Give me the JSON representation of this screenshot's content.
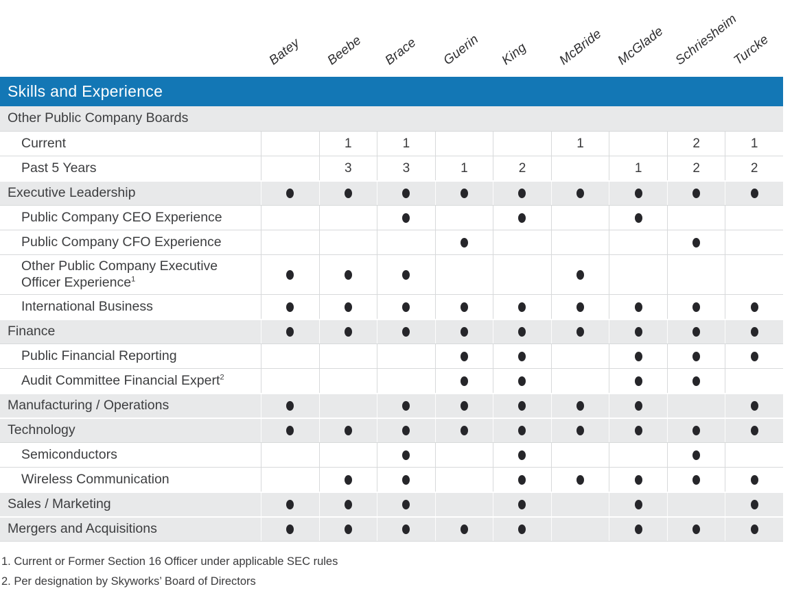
{
  "page": {
    "header_title": "Skills and Experience",
    "columns": [
      "Batey",
      "Beebe",
      "Brace",
      "Guerin",
      "King",
      "McBride",
      "McGlade",
      "Schriesheim",
      "Turcke"
    ],
    "rows": [
      {
        "label": "Other Public Company Boards",
        "type": "section",
        "plain": true,
        "cells": [
          "",
          "",
          "",
          "",
          "",
          "",
          "",
          "",
          ""
        ]
      },
      {
        "label": "Current",
        "type": "sub",
        "cells": [
          "",
          "1",
          "1",
          "",
          "",
          "1",
          "",
          "2",
          "1"
        ]
      },
      {
        "label": "Past 5 Years",
        "type": "sub",
        "cells": [
          "",
          "3",
          "3",
          "1",
          "2",
          "",
          "1",
          "2",
          "2"
        ]
      },
      {
        "label": "Executive Leadership",
        "type": "section",
        "cells": [
          "dot",
          "dot",
          "dot",
          "dot",
          "dot",
          "dot",
          "dot",
          "dot",
          "dot"
        ]
      },
      {
        "label": "Public Company CEO Experience",
        "type": "sub",
        "cells": [
          "",
          "",
          "dot",
          "",
          "dot",
          "",
          "dot",
          "",
          ""
        ]
      },
      {
        "label": "Public Company CFO Experience",
        "type": "sub",
        "cells": [
          "",
          "",
          "",
          "dot",
          "",
          "",
          "",
          "dot",
          ""
        ]
      },
      {
        "label": "Other Public Company Executive Officer Experience",
        "sup": "1",
        "type": "sub",
        "tall": true,
        "cells": [
          "dot",
          "dot",
          "dot",
          "",
          "",
          "dot",
          "",
          "",
          ""
        ]
      },
      {
        "label": "International Business",
        "type": "sub",
        "cells": [
          "dot",
          "dot",
          "dot",
          "dot",
          "dot",
          "dot",
          "dot",
          "dot",
          "dot"
        ]
      },
      {
        "label": "Finance",
        "type": "section",
        "cells": [
          "dot",
          "dot",
          "dot",
          "dot",
          "dot",
          "dot",
          "dot",
          "dot",
          "dot"
        ]
      },
      {
        "label": "Public Financial Reporting",
        "type": "sub",
        "cells": [
          "",
          "",
          "",
          "dot",
          "dot",
          "",
          "dot",
          "dot",
          "dot"
        ]
      },
      {
        "label": "Audit Committee Financial Expert",
        "sup": "2",
        "type": "sub",
        "cells": [
          "",
          "",
          "",
          "dot",
          "dot",
          "",
          "dot",
          "dot",
          ""
        ]
      },
      {
        "label": "Manufacturing / Operations",
        "type": "section",
        "cells": [
          "dot",
          "",
          "dot",
          "dot",
          "dot",
          "dot",
          "dot",
          "",
          "dot"
        ]
      },
      {
        "label": "Technology",
        "type": "section",
        "cells": [
          "dot",
          "dot",
          "dot",
          "dot",
          "dot",
          "dot",
          "dot",
          "dot",
          "dot"
        ]
      },
      {
        "label": "Semiconductors",
        "type": "sub",
        "cells": [
          "",
          "",
          "dot",
          "",
          "dot",
          "",
          "",
          "dot",
          ""
        ]
      },
      {
        "label": "Wireless Communication",
        "type": "sub",
        "cells": [
          "",
          "dot",
          "dot",
          "",
          "dot",
          "dot",
          "dot",
          "dot",
          "dot"
        ]
      },
      {
        "label": "Sales / Marketing",
        "type": "section",
        "cells": [
          "dot",
          "dot",
          "dot",
          "",
          "dot",
          "",
          "dot",
          "",
          "dot"
        ]
      },
      {
        "label": "Mergers and Acquisitions",
        "type": "section",
        "cells": [
          "dot",
          "dot",
          "dot",
          "dot",
          "dot",
          "",
          "dot",
          "dot",
          "dot"
        ]
      }
    ],
    "footnotes": [
      "1. Current or Former Section 16 Officer under applicable SEC rules",
      "2. Per designation by Skyworks’ Board of Directors"
    ],
    "colors": {
      "header_bg": "#1377B5",
      "section_bg": "#E8E9EA",
      "dot": "#26262A",
      "border": "#D7D9DA"
    }
  }
}
